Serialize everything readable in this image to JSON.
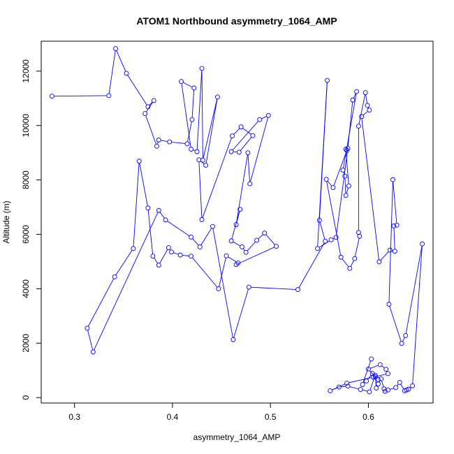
{
  "chart_data": {
    "type": "line",
    "title": "ATOM1 Northbound asymmetry_1064_AMP",
    "xlabel": "asymmetry_1064_AMP",
    "ylabel": "Altitude (m)",
    "xlim": [
      0.266,
      0.666
    ],
    "ylim": [
      -200,
      13100
    ],
    "xticks": [
      0.3,
      0.4,
      0.5,
      0.6
    ],
    "xtick_labels": [
      "0.3",
      "0.4",
      "0.5",
      "0.6"
    ],
    "yticks": [
      0,
      2000,
      4000,
      6000,
      8000,
      10000,
      12000
    ],
    "ytick_labels": [
      "0",
      "2000",
      "4000",
      "6000",
      "8000",
      "10000",
      "12000"
    ],
    "series_color": "#0000FF",
    "marker": "open-circle",
    "series": [
      {
        "x": [
          0.277,
          0.335,
          0.342,
          0.353,
          0.375,
          0.381,
          0.372,
          0.384,
          0.386,
          0.397,
          0.415,
          0.42,
          0.422,
          0.409,
          0.419,
          0.425,
          0.43,
          0.431,
          0.446,
          0.434,
          0.427,
          0.43,
          0.461,
          0.47,
          0.482,
          0.468,
          0.46,
          0.489,
          0.498,
          0.479,
          0.477,
          0.465,
          0.469,
          0.46,
          0.471,
          0.475,
          0.486,
          0.494,
          0.506,
          0.465,
          0.467,
          0.455,
          0.447,
          0.419,
          0.408,
          0.399,
          0.396,
          0.386,
          0.38,
          0.375,
          0.366,
          0.36,
          0.341,
          0.313,
          0.319,
          0.386,
          0.393,
          0.419,
          0.428,
          0.441,
          0.462,
          0.478,
          0.528,
          0.556,
          0.55,
          0.558,
          0.548,
          0.562,
          0.567,
          0.579,
          0.584,
          0.588,
          0.574,
          0.576,
          0.577,
          0.58,
          0.577,
          0.578,
          0.564,
          0.557,
          0.572,
          0.581,
          0.586,
          0.591,
          0.59,
          0.59,
          0.597,
          0.599,
          0.601,
          0.593,
          0.611,
          0.622,
          0.627,
          0.626,
          0.629,
          0.625,
          0.621,
          0.634,
          0.638,
          0.655,
          0.645,
          0.641,
          0.639,
          0.637,
          0.632,
          0.628,
          0.62,
          0.617,
          0.616,
          0.613,
          0.61,
          0.608,
          0.607,
          0.601,
          0.592,
          0.579,
          0.57,
          0.561,
          0.578,
          0.605,
          0.62,
          0.618,
          0.612,
          0.6,
          0.607,
          0.61,
          0.604,
          0.598,
          0.594,
          0.603
        ],
        "y": [
          11080,
          11100,
          12830,
          11920,
          10690,
          10920,
          10440,
          9240,
          9470,
          9400,
          9330,
          10220,
          11380,
          11620,
          9130,
          9040,
          12100,
          8730,
          11050,
          8540,
          8740,
          6540,
          9620,
          9950,
          9630,
          9020,
          9040,
          10220,
          10370,
          7860,
          9000,
          6360,
          6920,
          5760,
          5540,
          5340,
          5780,
          6050,
          5560,
          4890,
          4950,
          5210,
          4000,
          5200,
          5240,
          5350,
          5510,
          4870,
          5200,
          6970,
          8690,
          5480,
          4440,
          2550,
          1680,
          6880,
          6530,
          5900,
          5540,
          6290,
          2130,
          4060,
          3970,
          5750,
          6520,
          11660,
          5480,
          5800,
          5890,
          9160,
          10940,
          11250,
          8360,
          8140,
          7430,
          7780,
          9130,
          9080,
          7720,
          8020,
          5160,
          4750,
          5110,
          5930,
          6070,
          9980,
          11210,
          10740,
          10570,
          10330,
          4990,
          5420,
          5380,
          6310,
          6340,
          8010,
          3430,
          1990,
          2280,
          5650,
          430,
          310,
          280,
          250,
          560,
          370,
          280,
          230,
          320,
          690,
          500,
          350,
          820,
          210,
          300,
          420,
          390,
          250,
          530,
          750,
          880,
          1040,
          1210,
          1050,
          760,
          660,
          890,
          610,
          480,
          1420
        ]
      }
    ]
  }
}
